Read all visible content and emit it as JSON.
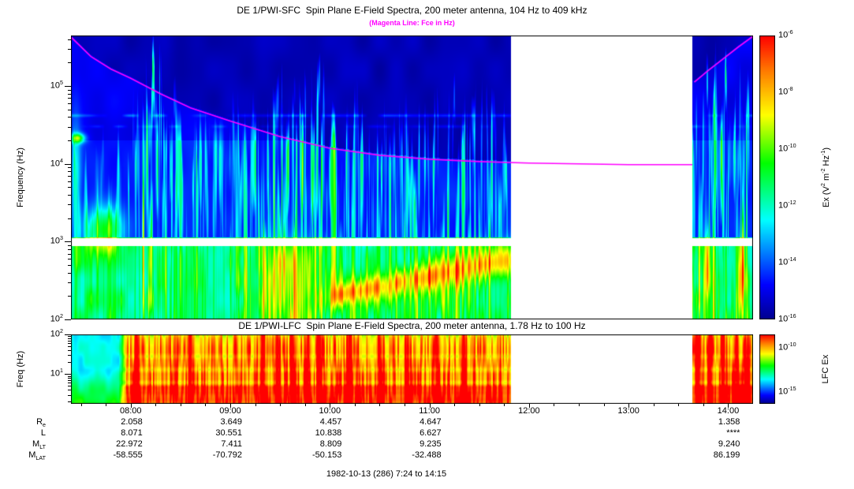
{
  "header": {
    "title": "DE 1/PWI-SFC  Spin Plane E-Field Spectra, 200 meter antenna, 104 Hz to 409 kHz",
    "subtitle": "(Magenta Line: Fce in Hz)",
    "subtitle_color": "#ff00ff"
  },
  "sfc": {
    "ylabel": "Frequency (Hz)",
    "colorbar_label_parts": [
      "Ex (V",
      [
        "2"
      ],
      " m",
      [
        "-2"
      ],
      " Hz",
      [
        "-1"
      ],
      ")"
    ]
  },
  "lfc": {
    "title": "DE 1/PWI-LFC  Spin Plane E-Field Spectra, 200 meter antenna, 1.78 Hz to 100 Hz",
    "ylabel": "Freq (Hz)",
    "colorbar_label": "LFC Ex"
  },
  "xaxis": {
    "tick_labels": [
      "08:00",
      "09:00",
      "10:00",
      "11:00",
      "12:00",
      "13:00",
      "14:00"
    ],
    "tick_hours": [
      8,
      9,
      10,
      11,
      12,
      13,
      14
    ]
  },
  "ephemeris": {
    "rows": [
      {
        "label": "R",
        "sub": "e",
        "values": [
          "2.058",
          "3.649",
          "4.457",
          "4.647",
          "",
          "",
          "1.358"
        ]
      },
      {
        "label": "L",
        "sub": "",
        "values": [
          "8.071",
          "30.551",
          "10.838",
          "6.627",
          "",
          "",
          "****"
        ]
      },
      {
        "label": "M",
        "sub": "LT",
        "values": [
          "22.972",
          "7.411",
          "8.809",
          "9.235",
          "",
          "",
          "9.240"
        ]
      },
      {
        "label": "M",
        "sub": "LAT",
        "values": [
          "-58.555",
          "-70.792",
          "-50.153",
          "-32.488",
          "",
          "",
          "86.199"
        ]
      }
    ]
  },
  "footer": {
    "date_range": "1982-10-13 (286) 7:24 to 14:15"
  },
  "chart_data": {
    "type": "heatmap",
    "title": "DE 1/PWI-SFC  Spin Plane E-Field Spectra, 200 meter antenna, 104 Hz to 409 kHz",
    "subtitle": "(Magenta Line: Fce in Hz)",
    "time_range_hours": [
      7.4,
      14.25
    ],
    "data_gap_hours": [
      11.82,
      13.64
    ],
    "colormap_stops": [
      [
        0,
        0,
        0,
        143
      ],
      [
        0.12,
        0,
        0,
        255
      ],
      [
        0.35,
        0,
        255,
        255
      ],
      [
        0.55,
        0,
        255,
        0
      ],
      [
        0.72,
        255,
        255,
        0
      ],
      [
        0.87,
        255,
        128,
        0
      ],
      [
        1,
        255,
        0,
        0
      ]
    ],
    "sfc_panel": {
      "title": "DE 1/PWI-SFC  Spin Plane E-Field Spectra, 200 meter antenna, 104 Hz to 409 kHz",
      "ylabel": "Frequency (Hz)",
      "freq_log_range": [
        2.0,
        5.65
      ],
      "value_log_range": [
        -16,
        -6
      ],
      "ytick_exps": [
        5,
        4,
        3,
        2
      ],
      "colorbar_tick_exps": [
        "-6",
        "-8",
        "-10",
        "-12",
        "-14",
        "-16"
      ],
      "white_band_log": [
        2.94,
        3.04
      ],
      "activity": [
        [
          7.4,
          0.4
        ],
        [
          7.75,
          0.32
        ],
        [
          8.0,
          0.5
        ],
        [
          8.1,
          0.88
        ],
        [
          8.35,
          0.9
        ],
        [
          8.55,
          0.6
        ],
        [
          8.9,
          0.5
        ],
        [
          9.2,
          0.75
        ],
        [
          9.45,
          0.95
        ],
        [
          9.9,
          0.9
        ],
        [
          10.15,
          0.65
        ],
        [
          10.6,
          0.6
        ],
        [
          11.0,
          0.62
        ],
        [
          11.35,
          0.72
        ],
        [
          11.6,
          0.72
        ],
        [
          11.82,
          0.6
        ],
        [
          13.0,
          0.5
        ],
        [
          13.64,
          0.85
        ],
        [
          13.85,
          0.95
        ],
        [
          14.05,
          0.85
        ],
        [
          14.25,
          0.8
        ]
      ],
      "blobs": [
        [
          7.47,
          0.07,
          4.33,
          0.06,
          4.6
        ],
        [
          7.45,
          0.05,
          3.8,
          0.75,
          2.2
        ],
        [
          7.73,
          0.18,
          3.15,
          0.3,
          4.0
        ],
        [
          9.62,
          0.3,
          2.55,
          0.6,
          2.2
        ],
        [
          13.79,
          0.04,
          2.7,
          0.55,
          3.4
        ],
        [
          14.13,
          0.035,
          2.55,
          0.5,
          4.0
        ]
      ],
      "hlines": [
        [
          4.62,
          1.5
        ],
        [
          4.48,
          0.9
        ]
      ],
      "rising_band": {
        "t_start": 9.95,
        "t_end": 11.85,
        "L0": 2.28,
        "slope": 0.26,
        "amp": 3.1,
        "w0": 0.13,
        "w_slope": 0.055
      }
    },
    "lfc_panel": {
      "title": "DE 1/PWI-LFC  Spin Plane E-Field Spectra, 200 meter antenna, 1.78 Hz to 100 Hz",
      "ylabel": "Freq (Hz)",
      "freq_log_range": [
        0.25,
        2.0
      ],
      "value_log_range": [
        -16.3,
        -8.5
      ],
      "ytick_exps": [
        2,
        1
      ],
      "colorbar_tick_exps": [
        "-10",
        "-15"
      ],
      "quiet_until_hours": 7.88,
      "red_columns": [
        8.07,
        8.6,
        9.33,
        9.48,
        9.63,
        9.78,
        9.9,
        10.2,
        10.5,
        10.78,
        11.08,
        11.35,
        13.7,
        13.82,
        13.95,
        14.08,
        14.2
      ]
    },
    "fce_line_log10hz": {
      "color": "#ff00ff",
      "segments": [
        [
          [
            7.4,
            5.63
          ],
          [
            7.6,
            5.38
          ],
          [
            7.8,
            5.22
          ],
          [
            8.0,
            5.1
          ],
          [
            8.3,
            4.9
          ],
          [
            8.6,
            4.72
          ],
          [
            9.0,
            4.55
          ],
          [
            9.5,
            4.35
          ],
          [
            10.0,
            4.2
          ],
          [
            10.5,
            4.11
          ],
          [
            11.0,
            4.06
          ],
          [
            11.5,
            4.03
          ],
          [
            12.0,
            4.01
          ],
          [
            12.5,
            4.0
          ],
          [
            13.0,
            3.99
          ],
          [
            13.64,
            3.99
          ]
        ],
        [
          [
            13.66,
            5.05
          ],
          [
            13.8,
            5.2
          ],
          [
            13.95,
            5.35
          ],
          [
            14.1,
            5.5
          ],
          [
            14.25,
            5.64
          ]
        ]
      ]
    }
  }
}
